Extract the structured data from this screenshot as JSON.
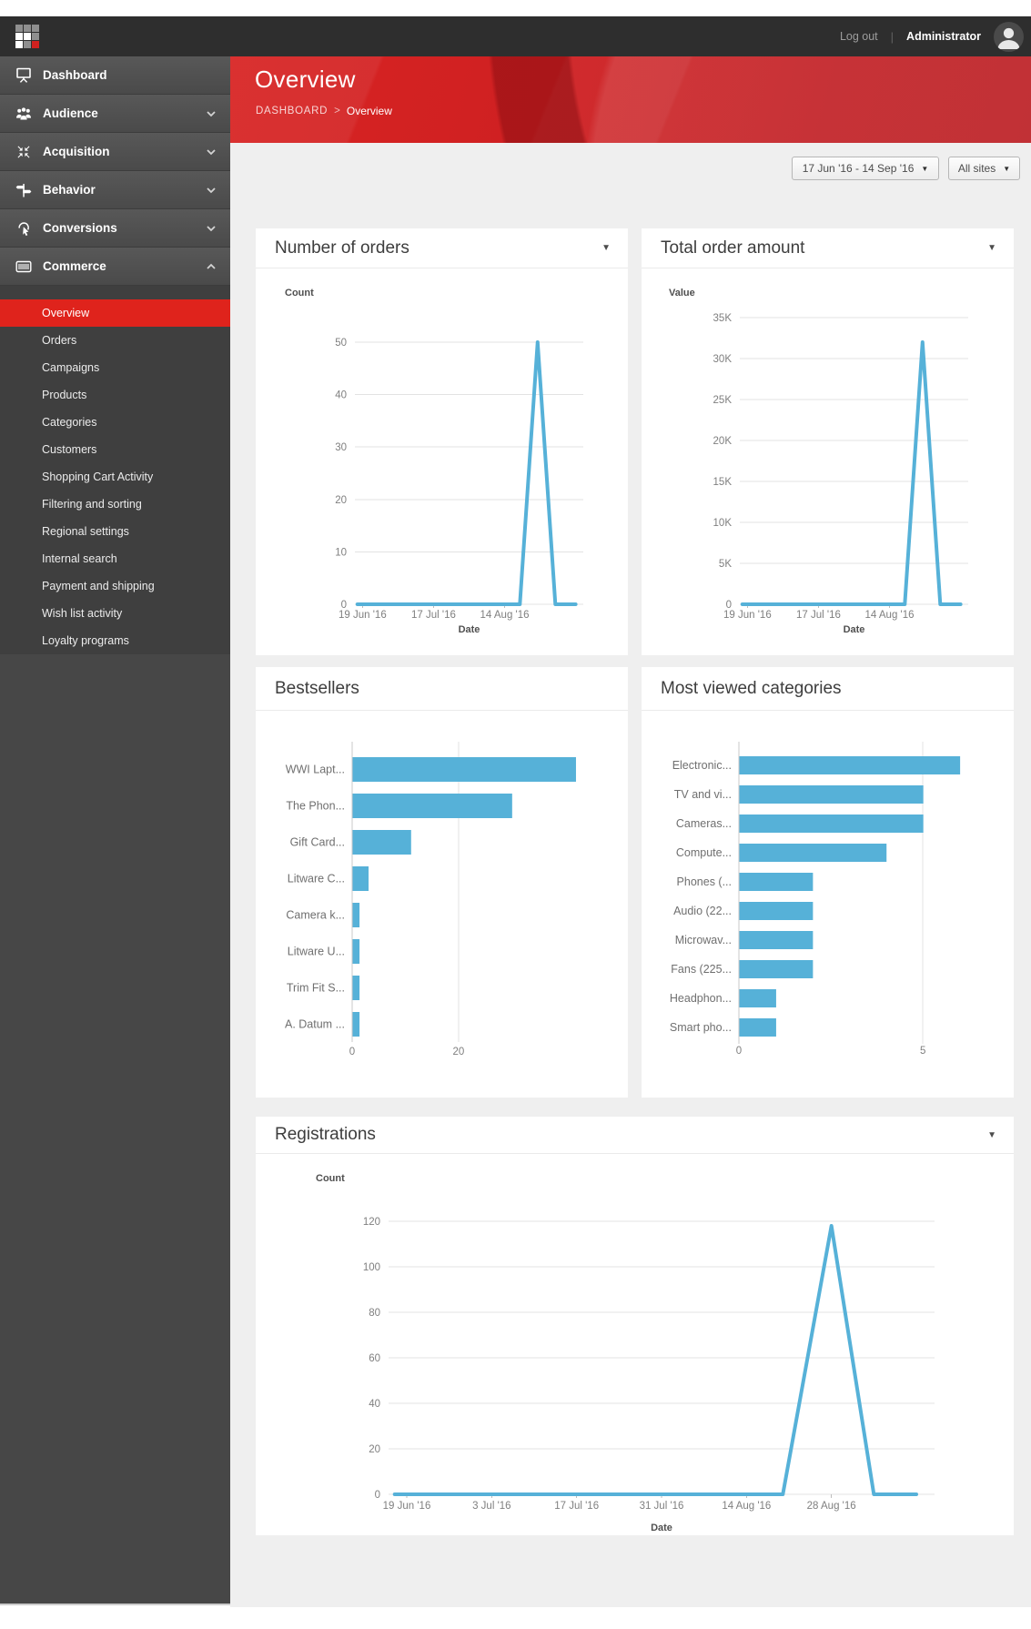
{
  "glyphs": {
    "caret": "▼"
  },
  "topbar": {
    "logout": "Log out",
    "divider": "|",
    "username": "Administrator"
  },
  "header": {
    "title": "Overview",
    "breadcrumb_root": "DASHBOARD",
    "breadcrumb_sep": ">",
    "breadcrumb_current": "Overview"
  },
  "filters": {
    "date_range": "17 Jun '16 - 14 Sep '16",
    "sites": "All sites"
  },
  "sidebar": {
    "items": [
      {
        "label": "Dashboard",
        "icon": "dashboard-screen-icon",
        "expandable": false
      },
      {
        "label": "Audience",
        "icon": "audience-people-icon",
        "expandable": true
      },
      {
        "label": "Acquisition",
        "icon": "acquisition-arrows-icon",
        "expandable": true
      },
      {
        "label": "Behavior",
        "icon": "behavior-signpost-icon",
        "expandable": true
      },
      {
        "label": "Conversions",
        "icon": "conversions-click-icon",
        "expandable": true
      },
      {
        "label": "Commerce",
        "icon": "commerce-barcode-icon",
        "expandable": true,
        "expanded": true
      }
    ],
    "commerce_submenu": [
      "Overview",
      "Orders",
      "Campaigns",
      "Products",
      "Categories",
      "Customers",
      "Shopping Cart Activity",
      "Filtering and sorting",
      "Regional settings",
      "Internal search",
      "Payment and shipping",
      "Wish list activity",
      "Loyalty programs"
    ],
    "active_item": "Overview"
  },
  "chart_data": [
    {
      "id": "number-of-orders",
      "type": "line",
      "title": "Number of orders",
      "ylabel": "Count",
      "xlabel": "Date",
      "line_color": "#56b1d8",
      "x_domain": [
        "2016-06-16",
        "2016-09-14"
      ],
      "ymax": 50,
      "grid": true,
      "x_ticks": [
        {
          "date": "2016-06-19",
          "label": "19 Jun '16"
        },
        {
          "date": "2016-07-17",
          "label": "17 Jul '16"
        },
        {
          "date": "2016-08-14",
          "label": "14 Aug '16"
        }
      ],
      "y_ticks": [
        {
          "v": 0,
          "label": "0"
        },
        {
          "v": 10,
          "label": "10"
        },
        {
          "v": 20,
          "label": "20"
        },
        {
          "v": 30,
          "label": "30"
        },
        {
          "v": 40,
          "label": "40"
        },
        {
          "v": 50,
          "label": "50"
        }
      ],
      "points": [
        [
          "2016-06-17",
          0
        ],
        [
          "2016-08-20",
          0
        ],
        [
          "2016-08-27",
          50
        ],
        [
          "2016-09-03",
          0
        ],
        [
          "2016-09-11",
          0
        ]
      ]
    },
    {
      "id": "total-order-amount",
      "type": "line",
      "title": "Total order amount",
      "ylabel": "Value",
      "xlabel": "Date",
      "line_color": "#56b1d8",
      "x_domain": [
        "2016-06-16",
        "2016-09-14"
      ],
      "ymax": 35000,
      "grid": true,
      "x_ticks": [
        {
          "date": "2016-06-19",
          "label": "19 Jun '16"
        },
        {
          "date": "2016-07-17",
          "label": "17 Jul '16"
        },
        {
          "date": "2016-08-14",
          "label": "14 Aug '16"
        }
      ],
      "y_ticks": [
        {
          "v": 0,
          "label": "0"
        },
        {
          "v": 5000,
          "label": "5K"
        },
        {
          "v": 10000,
          "label": "10K"
        },
        {
          "v": 15000,
          "label": "15K"
        },
        {
          "v": 20000,
          "label": "20K"
        },
        {
          "v": 25000,
          "label": "25K"
        },
        {
          "v": 30000,
          "label": "30K"
        },
        {
          "v": 35000,
          "label": "35K"
        }
      ],
      "points": [
        [
          "2016-06-17",
          0
        ],
        [
          "2016-08-20",
          0
        ],
        [
          "2016-08-27",
          32000
        ],
        [
          "2016-09-03",
          0
        ],
        [
          "2016-09-11",
          0
        ]
      ]
    },
    {
      "id": "bestsellers",
      "type": "bar",
      "title": "Bestsellers",
      "bar_color": "#56b1d8",
      "categories": [
        "WWI Lapt...",
        "The Phon...",
        "Gift Card...",
        "Litware C...",
        "Camera k...",
        "Litware U...",
        "Trim Fit S...",
        "A. Datum ..."
      ],
      "values": [
        42,
        30,
        11,
        3,
        1.3,
        1.3,
        1.3,
        1.3
      ],
      "xmax": 45,
      "x_ticks": [
        {
          "v": 0,
          "label": "0"
        },
        {
          "v": 20,
          "label": "20"
        }
      ]
    },
    {
      "id": "most-viewed-categories",
      "type": "bar",
      "title": "Most viewed categories",
      "bar_color": "#56b1d8",
      "categories": [
        "Electronic...",
        "TV and vi...",
        "Cameras...",
        "Compute...",
        "Phones (...",
        "Audio (22...",
        "Microwav...",
        "Fans (225...",
        "Headphon...",
        "Smart pho..."
      ],
      "values": [
        6,
        5,
        5,
        4,
        2,
        2,
        2,
        2,
        1,
        1
      ],
      "xmax": 6.9,
      "x_ticks": [
        {
          "v": 0,
          "label": "0"
        },
        {
          "v": 5,
          "label": "5"
        }
      ]
    },
    {
      "id": "registrations",
      "type": "line",
      "title": "Registrations",
      "ylabel": "Count",
      "xlabel": "Date",
      "line_color": "#56b1d8",
      "x_domain": [
        "2016-06-16",
        "2016-09-14"
      ],
      "ymax": 120,
      "grid": true,
      "x_ticks": [
        {
          "date": "2016-06-19",
          "label": "19 Jun '16"
        },
        {
          "date": "2016-07-03",
          "label": "3 Jul '16"
        },
        {
          "date": "2016-07-17",
          "label": "17 Jul '16"
        },
        {
          "date": "2016-07-31",
          "label": "31 Jul '16"
        },
        {
          "date": "2016-08-14",
          "label": "14 Aug '16"
        },
        {
          "date": "2016-08-28",
          "label": "28 Aug '16"
        }
      ],
      "y_ticks": [
        {
          "v": 0,
          "label": "0"
        },
        {
          "v": 20,
          "label": "20"
        },
        {
          "v": 40,
          "label": "40"
        },
        {
          "v": 60,
          "label": "60"
        },
        {
          "v": 80,
          "label": "80"
        },
        {
          "v": 100,
          "label": "100"
        },
        {
          "v": 120,
          "label": "120"
        }
      ],
      "points": [
        [
          "2016-06-17",
          0
        ],
        [
          "2016-08-20",
          0
        ],
        [
          "2016-08-28",
          118
        ],
        [
          "2016-09-04",
          0
        ],
        [
          "2016-09-11",
          0
        ]
      ]
    }
  ]
}
